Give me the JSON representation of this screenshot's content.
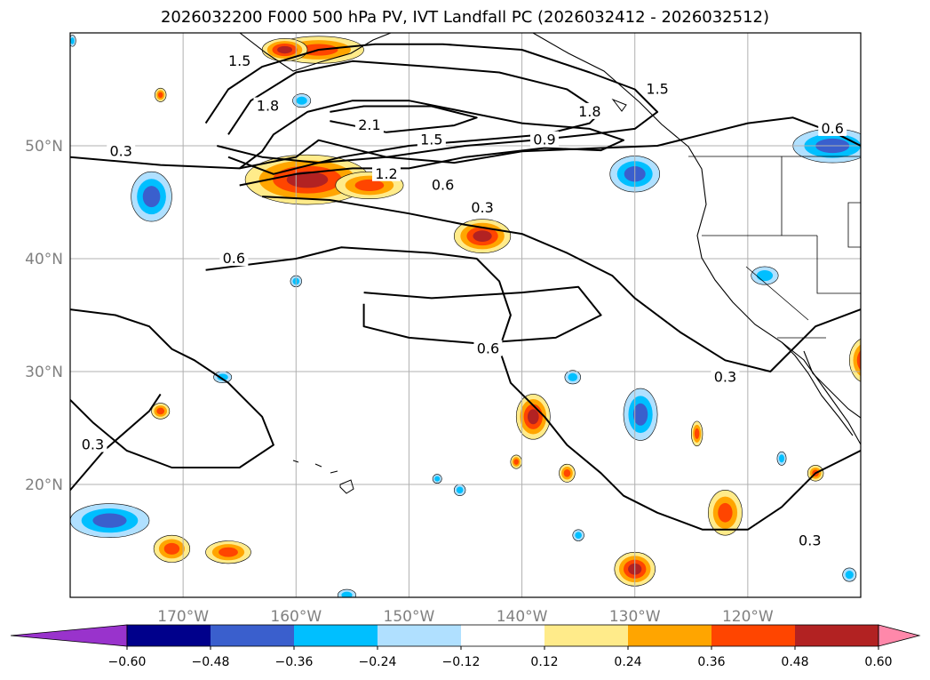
{
  "title": "2026032200 F000 500 hPa PV, IVT Landfall PC (2026032412 - 2026032512)",
  "map": {
    "lon_range": [
      -180,
      -110
    ],
    "lat_range": [
      10,
      60
    ],
    "lon_ticks": [
      {
        "lon": -170,
        "label": "170°W"
      },
      {
        "lon": -160,
        "label": "160°W"
      },
      {
        "lon": -150,
        "label": "150°W"
      },
      {
        "lon": -140,
        "label": "140°W"
      },
      {
        "lon": -130,
        "label": "130°W"
      },
      {
        "lon": -120,
        "label": "120°W"
      }
    ],
    "lat_ticks": [
      {
        "lat": 50,
        "label": "50°N"
      },
      {
        "lat": 40,
        "label": "40°N"
      },
      {
        "lat": 30,
        "label": "30°N"
      },
      {
        "lat": 20,
        "label": "20°N"
      }
    ],
    "gridlines": true
  },
  "contour_labels": [
    {
      "text": "0.3",
      "lon": -175.5,
      "lat": 49.5
    },
    {
      "text": "0.3",
      "lon": -178,
      "lat": 23.5
    },
    {
      "text": "0.3",
      "lon": -143.5,
      "lat": 44.5
    },
    {
      "text": "0.3",
      "lon": -122,
      "lat": 29.5
    },
    {
      "text": "0.3",
      "lon": -114.5,
      "lat": 15
    },
    {
      "text": "0.6",
      "lon": -165.5,
      "lat": 40
    },
    {
      "text": "0.6",
      "lon": -147,
      "lat": 46.5
    },
    {
      "text": "0.6",
      "lon": -143,
      "lat": 32
    },
    {
      "text": "0.6",
      "lon": -112.5,
      "lat": 51.5
    },
    {
      "text": "0.9",
      "lon": -138,
      "lat": 50.5
    },
    {
      "text": "1.2",
      "lon": -152,
      "lat": 47.5
    },
    {
      "text": "1.5",
      "lon": -148,
      "lat": 50.5
    },
    {
      "text": "1.8",
      "lon": -162.5,
      "lat": 53.5
    },
    {
      "text": "1.8",
      "lon": -134,
      "lat": 53
    },
    {
      "text": "2.1",
      "lon": -153.5,
      "lat": 51.8
    },
    {
      "text": "1.5",
      "lon": -165,
      "lat": 57.5
    },
    {
      "text": "1.5",
      "lon": -128,
      "lat": 55
    }
  ],
  "colorbar": {
    "bounds": [
      -0.72,
      -0.6,
      -0.48,
      -0.36,
      -0.24,
      -0.12,
      0.12,
      0.24,
      0.36,
      0.48,
      0.6,
      0.72
    ],
    "colors": [
      "#9933cc",
      "#00008b",
      "#3a5fcd",
      "#00bfff",
      "#b0e0ff",
      "#ffffff",
      "#ffeb8a",
      "#ffa500",
      "#ff4500",
      "#b22222",
      "#ff88aa"
    ],
    "under_color": "#9933cc",
    "over_color": "#ff88aa",
    "tick_labels": [
      "−0.60",
      "−0.48",
      "−0.36",
      "−0.24",
      "−0.12",
      "0.12",
      "0.24",
      "0.36",
      "0.48",
      "0.60"
    ]
  },
  "shaded_blobs": [
    {
      "lon": -159,
      "lat": 47,
      "rx": 5.5,
      "ry": 2.2,
      "level": 4
    },
    {
      "lon": -153.5,
      "lat": 46.5,
      "rx": 3,
      "ry": 1.2,
      "level": 3
    },
    {
      "lon": -158,
      "lat": 58.5,
      "rx": 4,
      "ry": 1.2,
      "level": 3
    },
    {
      "lon": -143.5,
      "lat": 42,
      "rx": 2.5,
      "ry": 1.5,
      "level": 4
    },
    {
      "lon": -139,
      "lat": 26,
      "rx": 1.5,
      "ry": 2,
      "level": 4
    },
    {
      "lon": -109.5,
      "lat": 31,
      "rx": 1.5,
      "ry": 2,
      "level": 4
    },
    {
      "lon": -130,
      "lat": 12.5,
      "rx": 1.8,
      "ry": 1.5,
      "level": 4
    },
    {
      "lon": -166,
      "lat": 14,
      "rx": 2,
      "ry": 1,
      "level": 3
    },
    {
      "lon": -171,
      "lat": 14.3,
      "rx": 1.6,
      "ry": 1.2,
      "level": 3
    },
    {
      "lon": -172,
      "lat": 26.5,
      "rx": 0.8,
      "ry": 0.7,
      "level": 3
    },
    {
      "lon": -122,
      "lat": 17.5,
      "rx": 1.5,
      "ry": 2,
      "level": 3
    },
    {
      "lon": -136,
      "lat": 21,
      "rx": 0.7,
      "ry": 0.8,
      "level": 3
    },
    {
      "lon": -140.5,
      "lat": 22,
      "rx": 0.5,
      "ry": 0.6,
      "level": 3
    },
    {
      "lon": -124.5,
      "lat": 24.5,
      "rx": 0.5,
      "ry": 1.1,
      "level": 3
    },
    {
      "lon": -114,
      "lat": 21,
      "rx": 0.7,
      "ry": 0.7,
      "level": 3
    },
    {
      "lon": -172,
      "lat": 54.5,
      "rx": 0.5,
      "ry": 0.6,
      "level": 3
    },
    {
      "lon": -161,
      "lat": 58.5,
      "rx": 2,
      "ry": 1,
      "level": 4
    },
    {
      "lon": -172.8,
      "lat": 45.5,
      "rx": 1.8,
      "ry": 2.2,
      "level": -3
    },
    {
      "lon": -130,
      "lat": 47.5,
      "rx": 2.2,
      "ry": 1.6,
      "level": -3
    },
    {
      "lon": -129.5,
      "lat": 26.2,
      "rx": 1.5,
      "ry": 2.3,
      "level": -3
    },
    {
      "lon": -176.5,
      "lat": 16.8,
      "rx": 3.5,
      "ry": 1.5,
      "level": -3
    },
    {
      "lon": -112.5,
      "lat": 50,
      "rx": 3.5,
      "ry": 1.5,
      "level": -3
    },
    {
      "lon": -118.5,
      "lat": 38.5,
      "rx": 1.2,
      "ry": 0.8,
      "level": -2
    },
    {
      "lon": -159.5,
      "lat": 54,
      "rx": 0.8,
      "ry": 0.6,
      "level": -2
    },
    {
      "lon": -160,
      "lat": 38,
      "rx": 0.5,
      "ry": 0.5,
      "level": -2
    },
    {
      "lon": -166.5,
      "lat": 29.5,
      "rx": 0.8,
      "ry": 0.5,
      "level": -2
    },
    {
      "lon": -135.5,
      "lat": 29.5,
      "rx": 0.7,
      "ry": 0.6,
      "level": -2
    },
    {
      "lon": -145.5,
      "lat": 19.5,
      "rx": 0.5,
      "ry": 0.5,
      "level": -2
    },
    {
      "lon": -147.5,
      "lat": 20.5,
      "rx": 0.4,
      "ry": 0.4,
      "level": -2
    },
    {
      "lon": -135,
      "lat": 15.5,
      "rx": 0.5,
      "ry": 0.5,
      "level": -2
    },
    {
      "lon": -111,
      "lat": 12,
      "rx": 0.6,
      "ry": 0.6,
      "level": -2
    },
    {
      "lon": -117,
      "lat": 22.3,
      "rx": 0.4,
      "ry": 0.6,
      "level": -2
    },
    {
      "lon": -155.5,
      "lat": 10.2,
      "rx": 0.8,
      "ry": 0.5,
      "level": -2
    },
    {
      "lon": -179.8,
      "lat": 59.3,
      "rx": 0.3,
      "ry": 0.5,
      "level": -2
    }
  ],
  "contours": [
    [
      [
        -180,
        49
      ],
      [
        -172,
        48.3
      ],
      [
        -165,
        48
      ],
      [
        -160,
        49
      ],
      [
        -158,
        50.5
      ],
      [
        -152,
        49
      ],
      [
        -146,
        48.5
      ],
      [
        -140,
        49.5
      ],
      [
        -133,
        49.8
      ],
      [
        -128,
        50
      ],
      [
        -124,
        51
      ],
      [
        -120,
        52
      ],
      [
        -116,
        52.5
      ],
      [
        -112,
        51
      ],
      [
        -110,
        50
      ]
    ],
    [
      [
        -180,
        35.5
      ],
      [
        -176,
        35
      ],
      [
        -173,
        34
      ],
      [
        -171,
        32
      ],
      [
        -169,
        31
      ],
      [
        -166,
        29
      ],
      [
        -163,
        26
      ],
      [
        -162,
        23.5
      ],
      [
        -165,
        21.5
      ],
      [
        -171,
        21.5
      ],
      [
        -175,
        23
      ],
      [
        -178,
        25.5
      ],
      [
        -180,
        27.5
      ]
    ],
    [
      [
        -180,
        19.5
      ],
      [
        -177,
        23
      ],
      [
        -173,
        26.5
      ],
      [
        -172,
        28
      ]
    ],
    [
      [
        -163,
        45.5
      ],
      [
        -157,
        45.2
      ],
      [
        -150,
        44
      ],
      [
        -145,
        43
      ],
      [
        -140,
        42.2
      ],
      [
        -136,
        40.5
      ],
      [
        -132,
        38.5
      ],
      [
        -130,
        36.5
      ],
      [
        -126,
        33.5
      ],
      [
        -122,
        31
      ],
      [
        -118,
        30
      ],
      [
        -116,
        32
      ],
      [
        -114,
        34
      ],
      [
        -110,
        35.5
      ]
    ],
    [
      [
        -168,
        39
      ],
      [
        -160,
        40
      ],
      [
        -156,
        41
      ],
      [
        -148,
        40.5
      ],
      [
        -144,
        40
      ],
      [
        -142,
        38
      ],
      [
        -141,
        35
      ],
      [
        -142,
        32
      ],
      [
        -141,
        29
      ],
      [
        -138,
        26
      ],
      [
        -136,
        23.5
      ],
      [
        -133,
        21
      ],
      [
        -131,
        19
      ],
      [
        -128,
        17.5
      ],
      [
        -124,
        16
      ],
      [
        -120,
        16
      ],
      [
        -117,
        18
      ],
      [
        -114,
        21
      ],
      [
        -112,
        22
      ],
      [
        -110,
        23
      ]
    ],
    [
      [
        -154,
        37
      ],
      [
        -148,
        36.5
      ],
      [
        -140,
        37
      ],
      [
        -135,
        37.5
      ],
      [
        -133,
        35
      ],
      [
        -137,
        33
      ],
      [
        -144,
        32.5
      ],
      [
        -150,
        33
      ],
      [
        -154,
        34
      ],
      [
        -154,
        36
      ]
    ],
    [
      [
        -165,
        46.5
      ],
      [
        -160,
        47.5
      ],
      [
        -155,
        48
      ],
      [
        -150,
        48
      ],
      [
        -145,
        49
      ],
      [
        -138,
        49.8
      ],
      [
        -133,
        49.6
      ],
      [
        -131,
        50.5
      ],
      [
        -134,
        51.5
      ],
      [
        -140,
        52
      ],
      [
        -145,
        53
      ],
      [
        -150,
        54
      ],
      [
        -155,
        54
      ],
      [
        -159,
        53
      ],
      [
        -162,
        51
      ],
      [
        -163,
        49.5
      ],
      [
        -165,
        48
      ]
    ],
    [
      [
        -166,
        49
      ],
      [
        -162,
        47.5
      ],
      [
        -156,
        49
      ],
      [
        -150,
        50
      ],
      [
        -144,
        50.5
      ],
      [
        -138,
        51
      ],
      [
        -134,
        52
      ],
      [
        -133,
        53
      ],
      [
        -136,
        55
      ],
      [
        -142,
        56.5
      ],
      [
        -148,
        57
      ],
      [
        -155,
        57.5
      ],
      [
        -160,
        56.5
      ],
      [
        -164,
        54
      ],
      [
        -166,
        51
      ]
    ],
    [
      [
        -157,
        52.2
      ],
      [
        -152,
        51.2
      ],
      [
        -146,
        51.8
      ],
      [
        -144,
        52.5
      ],
      [
        -148,
        53.5
      ],
      [
        -154,
        53.5
      ],
      [
        -157,
        53
      ]
    ],
    [
      [
        -168,
        52
      ],
      [
        -166,
        55
      ],
      [
        -163,
        57
      ],
      [
        -158,
        58.5
      ],
      [
        -153,
        59
      ],
      [
        -147,
        59
      ],
      [
        -140,
        58.5
      ],
      [
        -134,
        56.5
      ],
      [
        -130,
        55
      ],
      [
        -128,
        53
      ],
      [
        -130,
        51.5
      ],
      [
        -134,
        51
      ],
      [
        -139,
        50.5
      ],
      [
        -145,
        50
      ],
      [
        -152,
        49
      ],
      [
        -158,
        48.5
      ],
      [
        -163,
        49
      ],
      [
        -167,
        50
      ]
    ]
  ]
}
